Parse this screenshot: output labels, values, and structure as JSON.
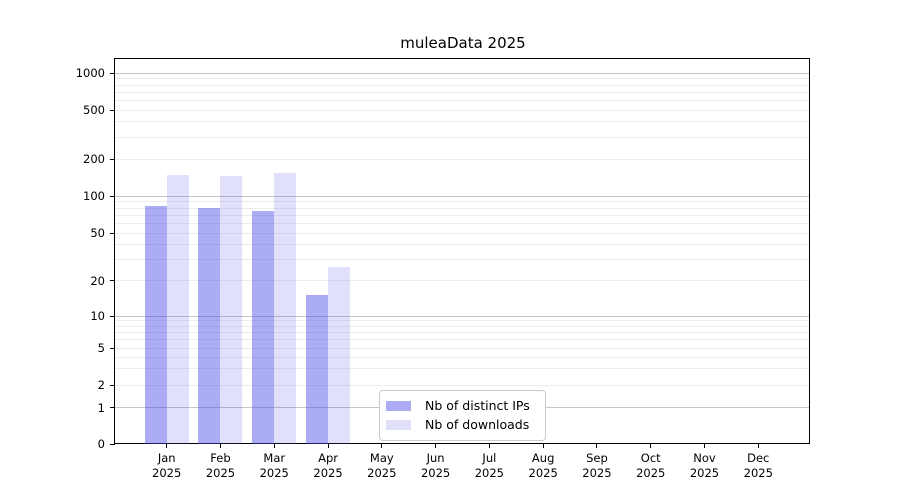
{
  "title": "muleaData 2025",
  "chart_data": {
    "type": "bar",
    "title": "muleaData 2025",
    "y_scale": "symlog",
    "grid": "both",
    "categories": [
      "Jan",
      "Feb",
      "Mar",
      "Apr",
      "May",
      "Jun",
      "Jul",
      "Aug",
      "Sep",
      "Oct",
      "Nov",
      "Dec"
    ],
    "x_year_label": "2025",
    "y_ticks": [
      0,
      1,
      2,
      5,
      10,
      20,
      50,
      100,
      200,
      500,
      1000
    ],
    "ylim": [
      0,
      1300
    ],
    "series": [
      {
        "name": "Nb of distinct IPs",
        "color": "#4646e6",
        "fill_alpha": 0.45,
        "values": [
          83,
          80,
          76,
          15,
          0,
          0,
          0,
          0,
          0,
          0,
          0,
          0
        ]
      },
      {
        "name": "Nb of downloads",
        "color": "#4646e6",
        "fill_alpha": 0.17,
        "values": [
          149,
          145,
          155,
          26,
          0,
          0,
          0,
          0,
          0,
          0,
          0,
          0
        ]
      }
    ],
    "legend": {
      "position": "lower center"
    }
  }
}
